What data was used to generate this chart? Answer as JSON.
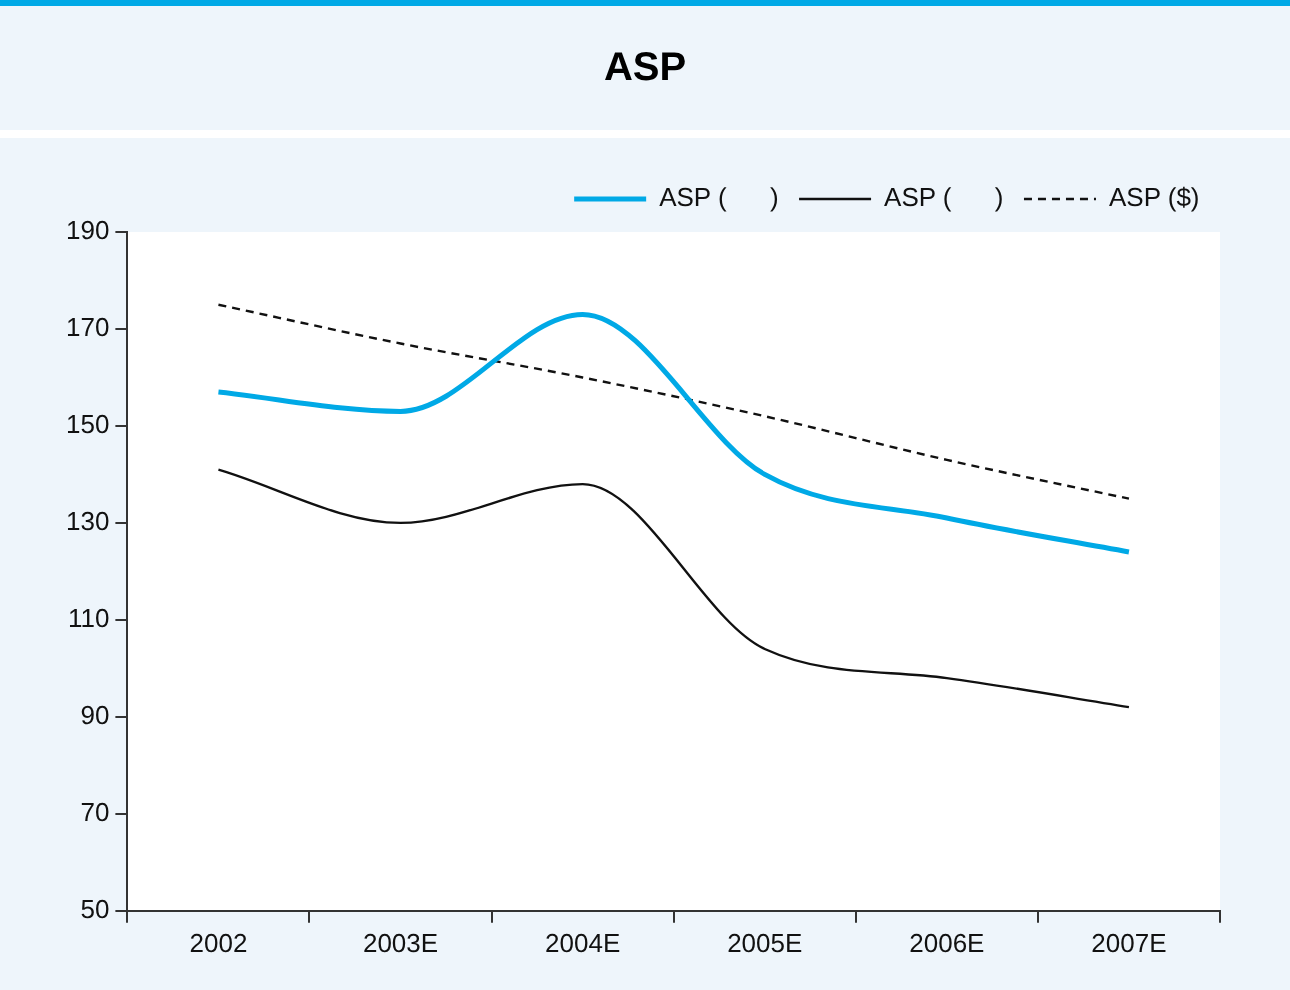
{
  "chart_data": {
    "type": "line",
    "title": "ASP",
    "categories": [
      "2002",
      "2003E",
      "2004E",
      "2005E",
      "2006E",
      "2007E"
    ],
    "series": [
      {
        "name": "ASP (      )",
        "color": "#00a9e6",
        "values": [
          157,
          153,
          173,
          140,
          131,
          124
        ]
      },
      {
        "name": "ASP (      )",
        "color": "#111111",
        "values": [
          141,
          130,
          138,
          104,
          98,
          92
        ]
      },
      {
        "name": "ASP ($)",
        "color": "#111111",
        "values": [
          175,
          167,
          160,
          152,
          143,
          135
        ],
        "line_style": "dashed"
      }
    ],
    "ylim": [
      50,
      190
    ],
    "yticks": [
      50,
      70,
      90,
      110,
      130,
      150,
      170,
      190
    ],
    "grid": false,
    "legend": "top right",
    "marker": "none"
  }
}
